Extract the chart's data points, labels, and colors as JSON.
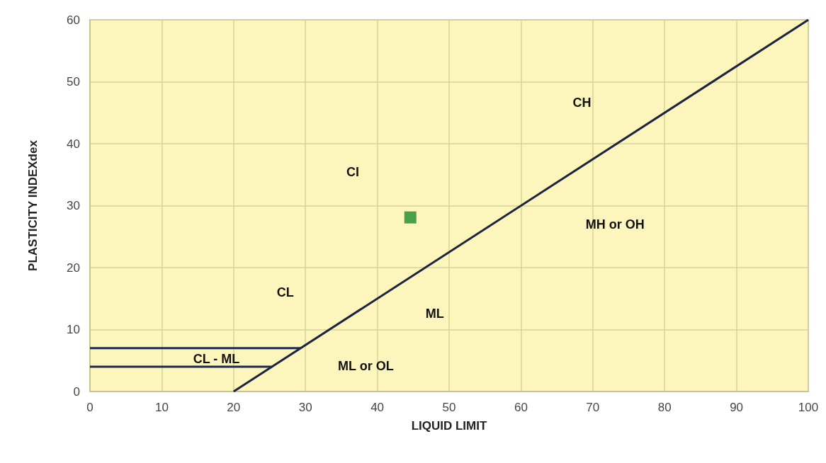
{
  "chart_data": {
    "type": "line",
    "xlabel": "LIQUID LIMIT",
    "ylabel": "PLASTICITY INDEXdex",
    "xlim": [
      0,
      100
    ],
    "xticks": [
      0,
      10,
      20,
      30,
      40,
      50,
      60,
      70,
      80,
      90,
      100
    ],
    "ylim": [
      0,
      60
    ],
    "yticks": [
      0,
      10,
      20,
      30,
      40,
      50,
      60
    ],
    "grid": true,
    "series": [
      {
        "color": "#1c2340",
        "marker": "none",
        "x": [
          20,
          100
        ],
        "values": [
          0,
          60
        ]
      },
      {
        "color": "#1c2a52",
        "marker": "none",
        "x": [
          0,
          29.3
        ],
        "values": [
          7,
          7
        ]
      },
      {
        "color": "#1c2a52",
        "marker": "none",
        "x": [
          0,
          25.3
        ],
        "values": [
          4,
          4
        ]
      },
      {
        "type": "scatter",
        "color": "#1e8a2e",
        "marker": "square",
        "x": [
          44.6
        ],
        "values": [
          28.1
        ]
      }
    ],
    "annotations": [
      "CL",
      "CI",
      "CH",
      "MH or OH",
      "ML",
      "ML or OL",
      "CL - ML"
    ]
  }
}
